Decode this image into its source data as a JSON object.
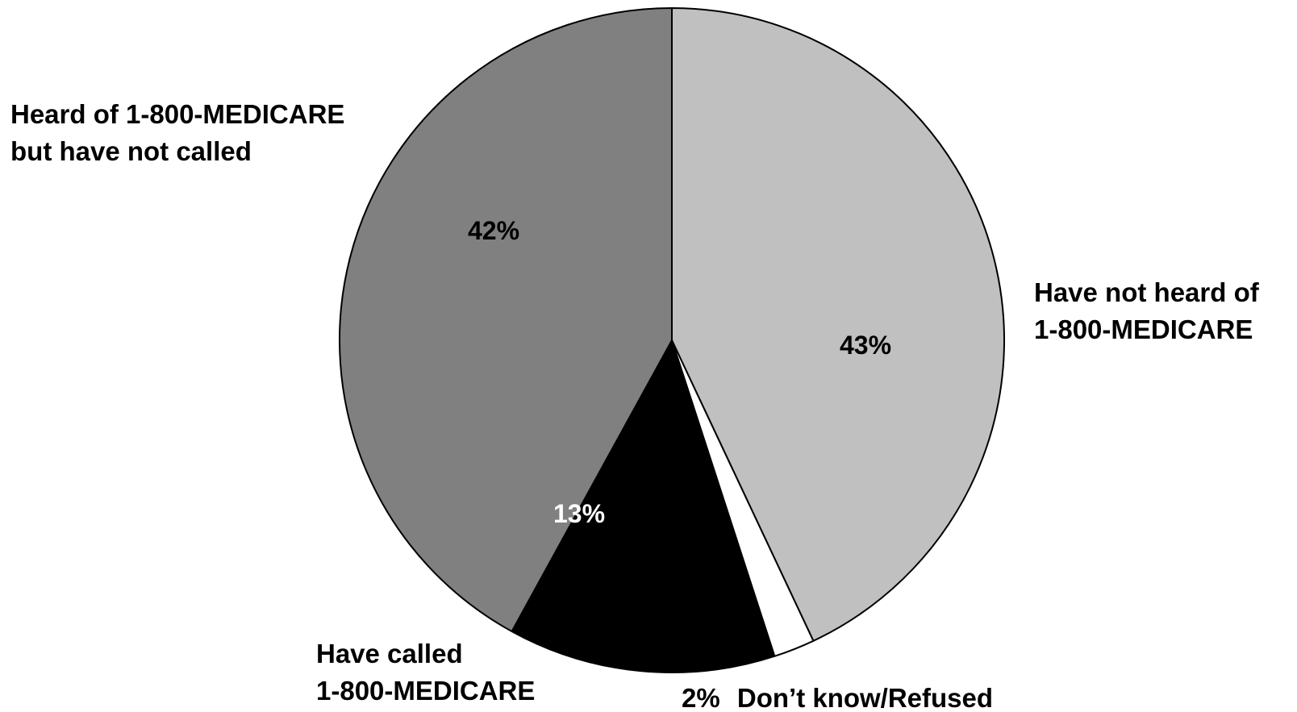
{
  "chart_data": {
    "type": "pie",
    "title": "",
    "start": "top",
    "direction": "clockwise",
    "slices": [
      {
        "label_lines": [
          "Have not heard of",
          "1-800-MEDICARE"
        ],
        "value": 43,
        "value_label": "43%",
        "color": "#c0c0c0",
        "value_label_color": "#000000"
      },
      {
        "label_lines": [
          "Don’t know/Refused"
        ],
        "value": 2,
        "value_label": "2%",
        "color": "#ffffff",
        "value_label_color": "#000000"
      },
      {
        "label_lines": [
          "Have called",
          "1-800-MEDICARE"
        ],
        "value": 13,
        "value_label": "13%",
        "color": "#000000",
        "value_label_color": "#ffffff"
      },
      {
        "label_lines": [
          "Heard of 1-800-MEDICARE",
          "but have not called"
        ],
        "value": 42,
        "value_label": "42%",
        "color": "#808080",
        "value_label_color": "#000000"
      }
    ]
  }
}
